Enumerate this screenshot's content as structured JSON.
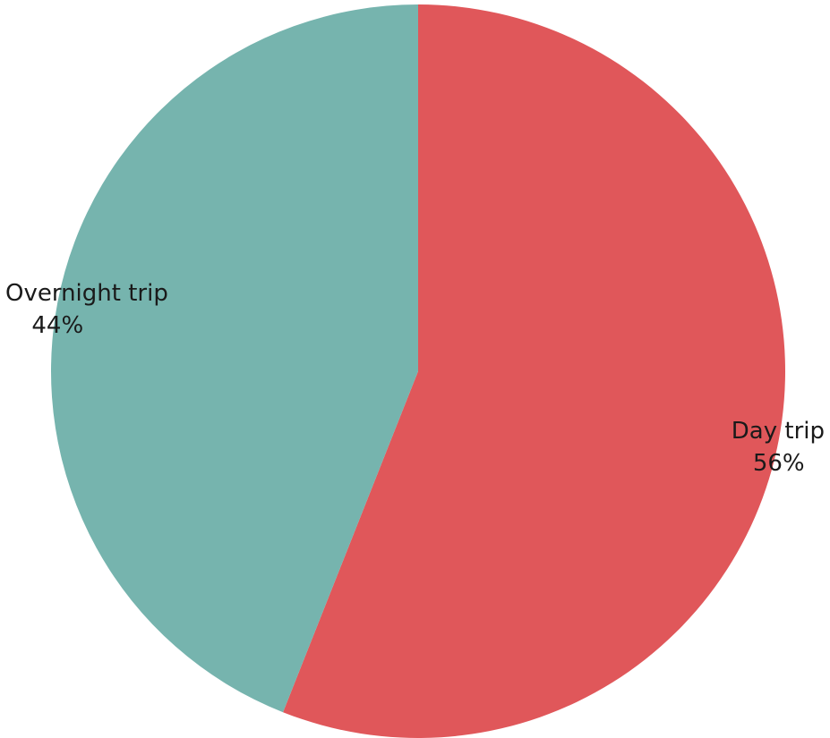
{
  "chart_data": {
    "type": "pie",
    "start_angle": "12 o'clock, clockwise",
    "slices": [
      {
        "label": "Day trip",
        "value": 56,
        "value_label": "56%",
        "color": "#e0575a"
      },
      {
        "label": "Overnight trip",
        "value": 44,
        "value_label": "44%",
        "color": "#76b4ae"
      }
    ],
    "legend": "none"
  }
}
